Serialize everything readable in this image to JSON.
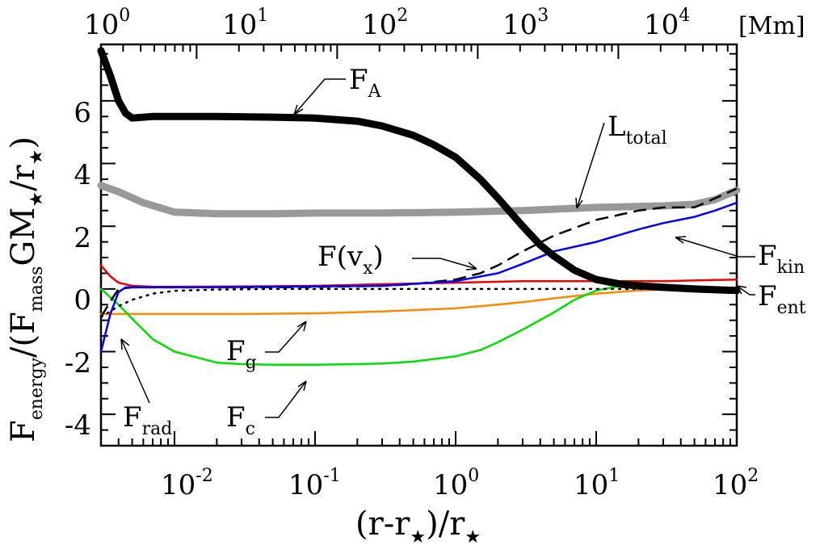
{
  "chart_data": {
    "type": "line",
    "title": "",
    "xlabel": {
      "base": "(r-r",
      "star": "★",
      "mid": ")/r",
      "star2": "★"
    },
    "ylabel": {
      "F": "F",
      "energy": "energy",
      "slash": "/(F",
      "mass": "mass",
      "gm": "GM",
      "star": "★",
      "rr": "/r",
      "star2": "★",
      "close": ")"
    },
    "xscale": "log",
    "xlim": [
      0.003,
      100
    ],
    "ylim": [
      -5,
      7.8
    ],
    "x_tick_labels": [
      "10",
      "10",
      "10",
      "10",
      "10"
    ],
    "x_tick_exponents": [
      "-2",
      "-1",
      "0",
      "1",
      "2"
    ],
    "x_tick_values": [
      0.01,
      0.1,
      1,
      10,
      100
    ],
    "y_ticks": [
      -4,
      -2,
      0,
      2,
      4,
      6
    ],
    "y_tick_labels": [
      "-4",
      "-2",
      "0",
      "2",
      "4",
      "6"
    ],
    "top_axis": {
      "label": "[Mm]",
      "tick_labels": [
        "10",
        "10",
        "10",
        "10",
        "10"
      ],
      "tick_exponents": [
        "0",
        "1",
        "2",
        "3",
        "4"
      ],
      "tick_values_mm": [
        1,
        10,
        100,
        1000,
        10000
      ],
      "mm_per_rstar_unit": 696,
      "offset_mm": 0
    },
    "series": [
      {
        "name": "F_A",
        "color": "#000000",
        "style": "solid-thick",
        "x": [
          0.003,
          0.0035,
          0.004,
          0.0045,
          0.005,
          0.007,
          0.01,
          0.02,
          0.05,
          0.1,
          0.2,
          0.3,
          0.5,
          0.7,
          1,
          1.5,
          2,
          3,
          4,
          5,
          7,
          10,
          15,
          20,
          30,
          50,
          100
        ],
        "y": [
          7.6,
          6.8,
          6.0,
          5.6,
          5.45,
          5.5,
          5.5,
          5.5,
          5.48,
          5.45,
          5.35,
          5.2,
          4.9,
          4.6,
          4.2,
          3.5,
          2.9,
          2.0,
          1.4,
          1.05,
          0.6,
          0.3,
          0.15,
          0.1,
          0.05,
          0.0,
          -0.05
        ]
      },
      {
        "name": "L_total",
        "color": "#999999",
        "style": "solid-thick",
        "x": [
          0.003,
          0.004,
          0.006,
          0.01,
          0.02,
          0.05,
          0.1,
          0.3,
          1,
          3,
          10,
          30,
          50,
          70,
          100
        ],
        "y": [
          3.3,
          3.1,
          2.75,
          2.45,
          2.4,
          2.4,
          2.42,
          2.42,
          2.45,
          2.5,
          2.6,
          2.65,
          2.7,
          2.85,
          3.15
        ]
      },
      {
        "name": "F(v_x)",
        "color": "#000000",
        "style": "dashed",
        "x": [
          0.003,
          0.0035,
          0.004,
          0.005,
          0.007,
          0.01,
          0.03,
          0.1,
          0.3,
          0.5,
          1,
          1.5,
          2,
          3,
          5,
          10,
          20,
          30,
          50,
          100
        ],
        "y": [
          -0.9,
          -0.4,
          0.0,
          0.05,
          0.05,
          0.05,
          0.05,
          0.06,
          0.1,
          0.15,
          0.3,
          0.5,
          0.75,
          1.2,
          1.7,
          2.2,
          2.5,
          2.6,
          2.6,
          3.2
        ]
      },
      {
        "name": "F_kin",
        "color": "#0000ee",
        "style": "solid",
        "x": [
          0.003,
          0.0035,
          0.004,
          0.0045,
          0.005,
          0.007,
          0.01,
          0.03,
          0.1,
          0.3,
          1,
          2,
          3,
          5,
          10,
          20,
          30,
          50,
          70,
          100
        ],
        "y": [
          -2.0,
          -0.8,
          -0.1,
          0.05,
          0.05,
          0.05,
          0.05,
          0.06,
          0.08,
          0.1,
          0.25,
          0.5,
          0.8,
          1.2,
          1.5,
          1.9,
          2.1,
          2.3,
          2.5,
          2.75
        ]
      },
      {
        "name": "F_ent",
        "color": "#ee0000",
        "style": "solid",
        "x": [
          0.003,
          0.0035,
          0.004,
          0.005,
          0.007,
          0.01,
          0.03,
          0.1,
          0.3,
          1,
          3,
          10,
          30,
          100
        ],
        "y": [
          0.75,
          0.4,
          0.2,
          0.1,
          0.07,
          0.07,
          0.08,
          0.1,
          0.15,
          0.2,
          0.25,
          0.25,
          0.25,
          0.3
        ]
      },
      {
        "name": "F_g",
        "color": "#ff8800",
        "style": "solid",
        "x": [
          0.003,
          0.005,
          0.01,
          0.03,
          0.1,
          0.3,
          1,
          2,
          3,
          5,
          10,
          20,
          30,
          50,
          100
        ],
        "y": [
          -0.8,
          -0.8,
          -0.8,
          -0.8,
          -0.78,
          -0.72,
          -0.62,
          -0.5,
          -0.42,
          -0.3,
          -0.15,
          -0.05,
          -0.02,
          0.0,
          0.0
        ]
      },
      {
        "name": "F_c",
        "color": "#00dd00",
        "style": "solid",
        "x": [
          0.003,
          0.004,
          0.005,
          0.007,
          0.01,
          0.02,
          0.03,
          0.05,
          0.1,
          0.2,
          0.3,
          0.5,
          1,
          1.5,
          2,
          3,
          5,
          7,
          10,
          15,
          20,
          30,
          50,
          100
        ],
        "y": [
          0.0,
          -0.5,
          -0.95,
          -1.6,
          -2.0,
          -2.35,
          -2.4,
          -2.42,
          -2.42,
          -2.4,
          -2.38,
          -2.32,
          -2.15,
          -1.95,
          -1.7,
          -1.3,
          -0.75,
          -0.35,
          -0.05,
          0.1,
          0.15,
          0.12,
          0.05,
          0.0
        ]
      },
      {
        "name": "F_rad",
        "color": "#000000",
        "style": "dotted",
        "x": [
          0.003,
          0.004,
          0.005,
          0.007,
          0.01,
          0.02,
          0.05,
          0.1,
          1,
          10,
          100
        ],
        "y": [
          -0.9,
          -0.55,
          -0.35,
          -0.15,
          -0.06,
          -0.02,
          0.0,
          0.0,
          0.0,
          0.0,
          0.0
        ]
      }
    ],
    "annotations": [
      {
        "name": "F_A",
        "main": "F",
        "sub": "A"
      },
      {
        "name": "L_total",
        "main": "L",
        "sub": "total"
      },
      {
        "name": "F(v_x)",
        "main": "F(v",
        "sub": "x",
        "tail": ")"
      },
      {
        "name": "F_kin",
        "main": "F",
        "sub": "kin"
      },
      {
        "name": "F_ent",
        "main": "F",
        "sub": "ent"
      },
      {
        "name": "F_g",
        "main": "F",
        "sub": "g"
      },
      {
        "name": "F_rad",
        "main": "F",
        "sub": "rad"
      },
      {
        "name": "F_c",
        "main": "F",
        "sub": "c"
      }
    ]
  }
}
